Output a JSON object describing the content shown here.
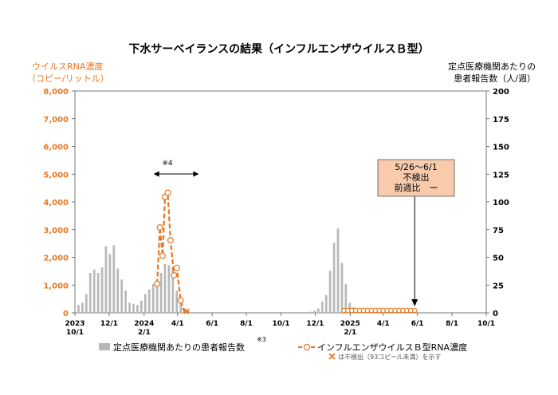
{
  "chart_data": {
    "type": "bar+line",
    "title": "下水サーベイランスの結果（インフルエンザウイルスＢ型）",
    "left_axis": {
      "label_line1": "ウイルスRNA濃度",
      "label_line2": "（コピー/リットル）",
      "ticks": [
        "0",
        "1,000",
        "2,000",
        "3,000",
        "4,000",
        "5,000",
        "6,000",
        "7,000",
        "8,000"
      ],
      "ylim": [
        0,
        8000
      ]
    },
    "right_axis": {
      "label_line1": "定点医療機関あたりの",
      "label_line2": "患者報告数（人/週）",
      "ticks": [
        "0",
        "25",
        "50",
        "75",
        "100",
        "125",
        "150",
        "175",
        "200"
      ],
      "ylim": [
        0,
        200
      ]
    },
    "x_axis": {
      "ticks": [
        {
          "l1": "2023",
          "l2": "10/1",
          "w": 0
        },
        {
          "l1": "12/1",
          "l2": "",
          "w": 8.7
        },
        {
          "l1": "2024",
          "l2": "2/1",
          "w": 17.6
        },
        {
          "l1": "4/1",
          "l2": "",
          "w": 26.1
        },
        {
          "l1": "6/1",
          "l2": "",
          "w": 34.9
        },
        {
          "l1": "8/1",
          "l2": "",
          "w": 43.6
        },
        {
          "l1": "10/1",
          "l2": "",
          "w": 52.4
        },
        {
          "l1": "12/1",
          "l2": "",
          "w": 61.1
        },
        {
          "l1": "2025",
          "l2": "2/1",
          "w": 70
        },
        {
          "l1": "4/1",
          "l2": "",
          "w": 78.4
        },
        {
          "l1": "6/1",
          "l2": "",
          "w": 87.1
        },
        {
          "l1": "8/1",
          "l2": "",
          "w": 95.9
        },
        {
          "l1": "10/1",
          "l2": "",
          "w": 104.6
        }
      ],
      "range_weeks": [
        0,
        104.6
      ]
    },
    "bars": {
      "name": "定点医療機関あたりの患者報告数",
      "superscript": "※3",
      "color": "#b8b8b8",
      "data": [
        [
          0.9,
          7
        ],
        [
          1.9,
          9
        ],
        [
          2.9,
          17
        ],
        [
          3.9,
          36
        ],
        [
          4.9,
          39
        ],
        [
          5.9,
          36
        ],
        [
          6.9,
          41
        ],
        [
          7.9,
          60
        ],
        [
          8.9,
          53
        ],
        [
          9.9,
          61
        ],
        [
          10.9,
          40
        ],
        [
          11.9,
          30
        ],
        [
          12.9,
          20
        ],
        [
          13.9,
          9
        ],
        [
          14.9,
          8
        ],
        [
          15.9,
          7
        ],
        [
          16.9,
          11
        ],
        [
          17.9,
          17
        ],
        [
          18.9,
          21
        ],
        [
          19.9,
          26
        ],
        [
          20.9,
          30
        ],
        [
          21.9,
          36
        ],
        [
          22.9,
          44
        ],
        [
          23.9,
          43
        ],
        [
          24.9,
          41
        ],
        [
          25.9,
          20
        ],
        [
          26.9,
          9
        ],
        [
          27.9,
          4
        ],
        [
          28.9,
          2
        ],
        [
          59.9,
          1
        ],
        [
          60.9,
          2
        ],
        [
          61.9,
          4
        ],
        [
          62.9,
          10
        ],
        [
          63.9,
          16
        ],
        [
          64.9,
          38
        ],
        [
          65.9,
          63
        ],
        [
          66.9,
          76
        ],
        [
          67.9,
          45
        ],
        [
          68.9,
          26
        ],
        [
          69.9,
          9
        ],
        [
          70.9,
          5
        ],
        [
          71.9,
          3
        ],
        [
          72.9,
          2
        ],
        [
          73.9,
          1
        ]
      ]
    },
    "line": {
      "name": "インフルエンザウイルスＢ型RNA濃度",
      "color": "#e87722",
      "segments": [
        [
          [
            20.9,
            1050
          ],
          [
            21.6,
            3080
          ],
          [
            22.3,
            2060
          ],
          [
            22.9,
            4180
          ],
          [
            23.6,
            4330
          ],
          [
            24.3,
            2620
          ],
          [
            25.2,
            1350
          ],
          [
            25.9,
            1620
          ],
          [
            26.9,
            450
          ],
          [
            27.9,
            0
          ]
        ]
      ],
      "nondetect_points": [
        28.4
      ],
      "open_points": [
        [
          68.4,
          0
        ],
        [
          69.4,
          0
        ],
        [
          70.4,
          0
        ],
        [
          71.4,
          0
        ],
        [
          72.4,
          0
        ],
        [
          73.4,
          0
        ],
        [
          74.4,
          0
        ],
        [
          75.4,
          0
        ],
        [
          76.4,
          0
        ],
        [
          77.4,
          0
        ],
        [
          78.4,
          0
        ],
        [
          79.4,
          0
        ],
        [
          80.4,
          0
        ],
        [
          81.4,
          0
        ],
        [
          82.4,
          0
        ],
        [
          83.4,
          0
        ],
        [
          84.4,
          0
        ],
        [
          85.4,
          0
        ],
        [
          86.4,
          0
        ]
      ]
    },
    "annotations": {
      "range_note": "※4",
      "range_arrow_weeks": [
        20.0,
        31.5
      ],
      "box_lines": [
        "5/26～6/1",
        "不検出",
        "前週比　ー"
      ],
      "box_arrow_week": 86.4,
      "nondetect_legend": "は不検出（93コピー/L未満）を示す"
    },
    "legend_placement": "bottom",
    "grid": false
  }
}
